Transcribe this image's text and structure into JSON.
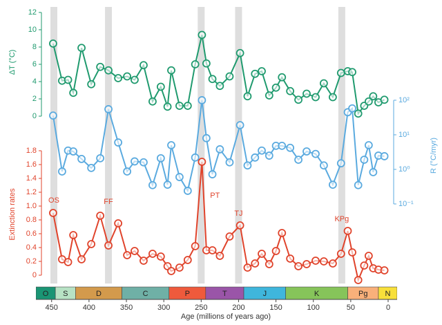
{
  "chart_data": {
    "type": "line",
    "xlabel": "Age (millions of years ago)",
    "xlim": [
      471,
      -12
    ],
    "xticks": [
      450,
      400,
      350,
      300,
      250,
      200,
      150,
      100,
      50,
      0
    ],
    "x": [
      448,
      436,
      428,
      421,
      410,
      397,
      385,
      374,
      361,
      349,
      339,
      327,
      315,
      304,
      295,
      290,
      279,
      268,
      258,
      249,
      243,
      235,
      225,
      212,
      198,
      188,
      178,
      169,
      159,
      150,
      142,
      131,
      120,
      109,
      97,
      86,
      74,
      63,
      54,
      48,
      40,
      32,
      26,
      20,
      13,
      5
    ],
    "series": [
      {
        "ylabel": "ΔT (°C)",
        "color": "#1f9a6e",
        "side": "left",
        "log": false,
        "ylim": [
          -19.36,
          12.64
        ],
        "yticks": [
          0,
          2,
          4,
          6,
          8,
          10,
          12
        ],
        "values": [
          8.4,
          4.1,
          4.2,
          2.7,
          7.9,
          3.7,
          5.7,
          5.3,
          4.4,
          4.6,
          4.2,
          5.9,
          1.7,
          3.4,
          1.1,
          5.3,
          1.2,
          1.2,
          6.0,
          9.4,
          6.1,
          4.3,
          3.5,
          4.6,
          7.3,
          2.3,
          4.9,
          5.2,
          2.4,
          3.3,
          4.5,
          2.9,
          1.9,
          2.6,
          2.2,
          3.8,
          2.2,
          5.0,
          5.2,
          5.1,
          0.3,
          1.2,
          1.7,
          2.3,
          1.6,
          1.9
        ]
      },
      {
        "ylabel": "R (°C/myr)",
        "color": "#5aaadf",
        "side": "right",
        "log": true,
        "ylim": [
          0.0005,
          50000
        ],
        "yticks": [
          {
            "value": 0.1,
            "label": "10⁻¹"
          },
          {
            "value": 1,
            "label": "10⁰"
          },
          {
            "value": 10,
            "label": "10¹"
          },
          {
            "value": 100,
            "label": "10²"
          }
        ],
        "values": [
          36,
          0.87,
          3.5,
          3.3,
          2.0,
          1.1,
          2.1,
          55,
          6,
          0.87,
          1.7,
          1.6,
          0.35,
          2.1,
          0.36,
          5,
          0.6,
          0.24,
          2.2,
          100,
          8,
          0.72,
          3.8,
          1.6,
          19,
          1.3,
          2.2,
          3.5,
          2.5,
          4.8,
          4.8,
          4.2,
          1.9,
          3.3,
          2.8,
          1.3,
          0.36,
          1.5,
          45,
          58,
          0.35,
          1.9,
          5,
          0.83,
          2.5,
          2.4
        ]
      },
      {
        "ylabel": "Extinction rates",
        "color": "#e0432b",
        "side": "left",
        "log": false,
        "ylim": [
          -0.12,
          3.88
        ],
        "yticks": [
          0,
          0.2,
          0.4,
          0.6,
          0.8,
          {
            "value": 1,
            "label": "1.0"
          },
          1.2,
          1.4,
          1.6,
          1.8
        ],
        "values": [
          0.9,
          0.23,
          0.19,
          0.58,
          0.23,
          0.45,
          0.86,
          0.43,
          0.75,
          0.29,
          0.35,
          0.21,
          0.31,
          0.27,
          0.13,
          0.06,
          0.11,
          0.22,
          0.42,
          1.64,
          0.36,
          0.36,
          0.28,
          0.56,
          0.72,
          0.11,
          0.17,
          0.31,
          0.16,
          0.35,
          0.61,
          0.24,
          0.13,
          0.16,
          0.21,
          0.2,
          0.17,
          0.31,
          0.64,
          0.33,
          -0.07,
          0.14,
          0.28,
          0.1,
          0.08,
          0.07
        ]
      }
    ],
    "extinction_events": [
      {
        "label": "OS",
        "age": 447
      },
      {
        "label": "FF",
        "age": 374
      },
      {
        "label": "PT",
        "age": 250
      },
      {
        "label": "TJ",
        "age": 200
      },
      {
        "label": "KPg",
        "age": 62
      }
    ],
    "periods": [
      {
        "label": "O",
        "start": 471,
        "end": 445,
        "color": "#1a9574"
      },
      {
        "label": "S",
        "start": 445,
        "end": 418,
        "color": "#b7e2c4"
      },
      {
        "label": "D",
        "start": 418,
        "end": 356,
        "color": "#d39a4c"
      },
      {
        "label": "C",
        "start": 356,
        "end": 293,
        "color": "#6fb0a6"
      },
      {
        "label": "P",
        "start": 293,
        "end": 244,
        "color": "#ef5a3c"
      },
      {
        "label": "T",
        "start": 244,
        "end": 193,
        "color": "#9a55a8"
      },
      {
        "label": "J",
        "start": 193,
        "end": 137,
        "color": "#3fb6dc"
      },
      {
        "label": "K",
        "start": 137,
        "end": 54,
        "color": "#86c45a"
      },
      {
        "label": "Pg",
        "start": 54,
        "end": 13,
        "color": "#f9b07a"
      },
      {
        "label": "N",
        "start": 13,
        "end": -12,
        "color": "#f8e03a"
      }
    ]
  }
}
